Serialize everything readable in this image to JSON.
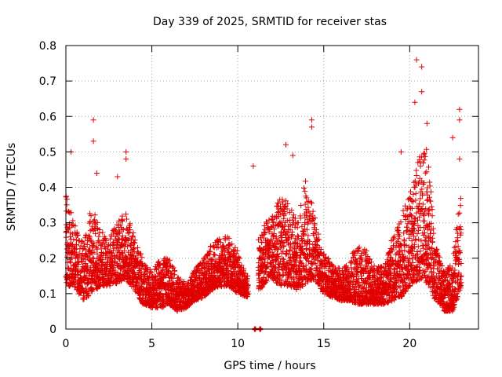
{
  "chart_data": {
    "type": "scatter",
    "title": "Day 339 of 2025, SRMTID for receiver stas",
    "xlabel": "GPS time / hours",
    "ylabel": "SRMTID / TECUs",
    "xlim": [
      0,
      24
    ],
    "ylim": [
      0,
      0.8
    ],
    "x_ticks": [
      0,
      5,
      10,
      15,
      20
    ],
    "x_tick_labels": [
      "0",
      "5",
      "10",
      "15",
      "20"
    ],
    "y_ticks": [
      0,
      0.1,
      0.2,
      0.3,
      0.4,
      0.5,
      0.6,
      0.7,
      0.8
    ],
    "y_tick_labels": [
      "0",
      "0.1",
      "0.2",
      "0.3",
      "0.4",
      "0.5",
      "0.6",
      "0.7",
      "0.8"
    ],
    "grid": true,
    "marker": "+",
    "color": "#e00000",
    "series": [
      {
        "name": "SRMTID",
        "envelope_hours": [
          0,
          0.5,
          1,
          1.5,
          2,
          2.5,
          3,
          3.5,
          4,
          4.5,
          5,
          5.5,
          6,
          6.5,
          7,
          7.5,
          8,
          8.5,
          9,
          9.5,
          10,
          10.5,
          11,
          11.5,
          12,
          12.5,
          13,
          13.5,
          14,
          14.5,
          15,
          15.5,
          16,
          16.5,
          17,
          17.5,
          18,
          18.5,
          19,
          19.5,
          20,
          20.5,
          21,
          21.5,
          22,
          22.5,
          23
        ],
        "envelope_low": [
          0.12,
          0.12,
          0.08,
          0.1,
          0.12,
          0.12,
          0.13,
          0.14,
          0.11,
          0.07,
          0.06,
          0.06,
          0.07,
          0.05,
          0.06,
          0.08,
          0.09,
          0.11,
          0.12,
          0.12,
          0.1,
          0.09,
          0.1,
          0.12,
          0.14,
          0.12,
          0.12,
          0.11,
          0.13,
          0.14,
          0.1,
          0.09,
          0.08,
          0.08,
          0.07,
          0.07,
          0.07,
          0.07,
          0.08,
          0.09,
          0.12,
          0.14,
          0.13,
          0.08,
          0.05,
          0.05,
          0.12
        ],
        "envelope_high": [
          0.38,
          0.3,
          0.25,
          0.35,
          0.28,
          0.26,
          0.3,
          0.34,
          0.26,
          0.2,
          0.16,
          0.2,
          0.2,
          0.15,
          0.13,
          0.17,
          0.2,
          0.24,
          0.26,
          0.26,
          0.22,
          0.15,
          0.22,
          0.3,
          0.32,
          0.38,
          0.35,
          0.3,
          0.45,
          0.32,
          0.22,
          0.18,
          0.17,
          0.2,
          0.24,
          0.22,
          0.18,
          0.18,
          0.26,
          0.32,
          0.38,
          0.48,
          0.52,
          0.25,
          0.16,
          0.2,
          0.4
        ],
        "spikes": [
          {
            "x": 0.3,
            "y": 0.5
          },
          {
            "x": 1.6,
            "y": 0.59
          },
          {
            "x": 1.6,
            "y": 0.53
          },
          {
            "x": 1.8,
            "y": 0.44
          },
          {
            "x": 3.0,
            "y": 0.43
          },
          {
            "x": 3.5,
            "y": 0.5
          },
          {
            "x": 3.5,
            "y": 0.48
          },
          {
            "x": 10.9,
            "y": 0.46
          },
          {
            "x": 12.8,
            "y": 0.52
          },
          {
            "x": 13.2,
            "y": 0.49
          },
          {
            "x": 14.3,
            "y": 0.59
          },
          {
            "x": 14.3,
            "y": 0.57
          },
          {
            "x": 19.5,
            "y": 0.5
          },
          {
            "x": 20.4,
            "y": 0.76
          },
          {
            "x": 20.7,
            "y": 0.74
          },
          {
            "x": 20.3,
            "y": 0.64
          },
          {
            "x": 20.7,
            "y": 0.67
          },
          {
            "x": 21.0,
            "y": 0.58
          },
          {
            "x": 22.5,
            "y": 0.54
          },
          {
            "x": 22.9,
            "y": 0.62
          },
          {
            "x": 22.9,
            "y": 0.59
          },
          {
            "x": 22.9,
            "y": 0.48
          },
          {
            "x": 11.0,
            "y": 0.0
          },
          {
            "x": 11.3,
            "y": 0.0
          }
        ]
      }
    ]
  }
}
